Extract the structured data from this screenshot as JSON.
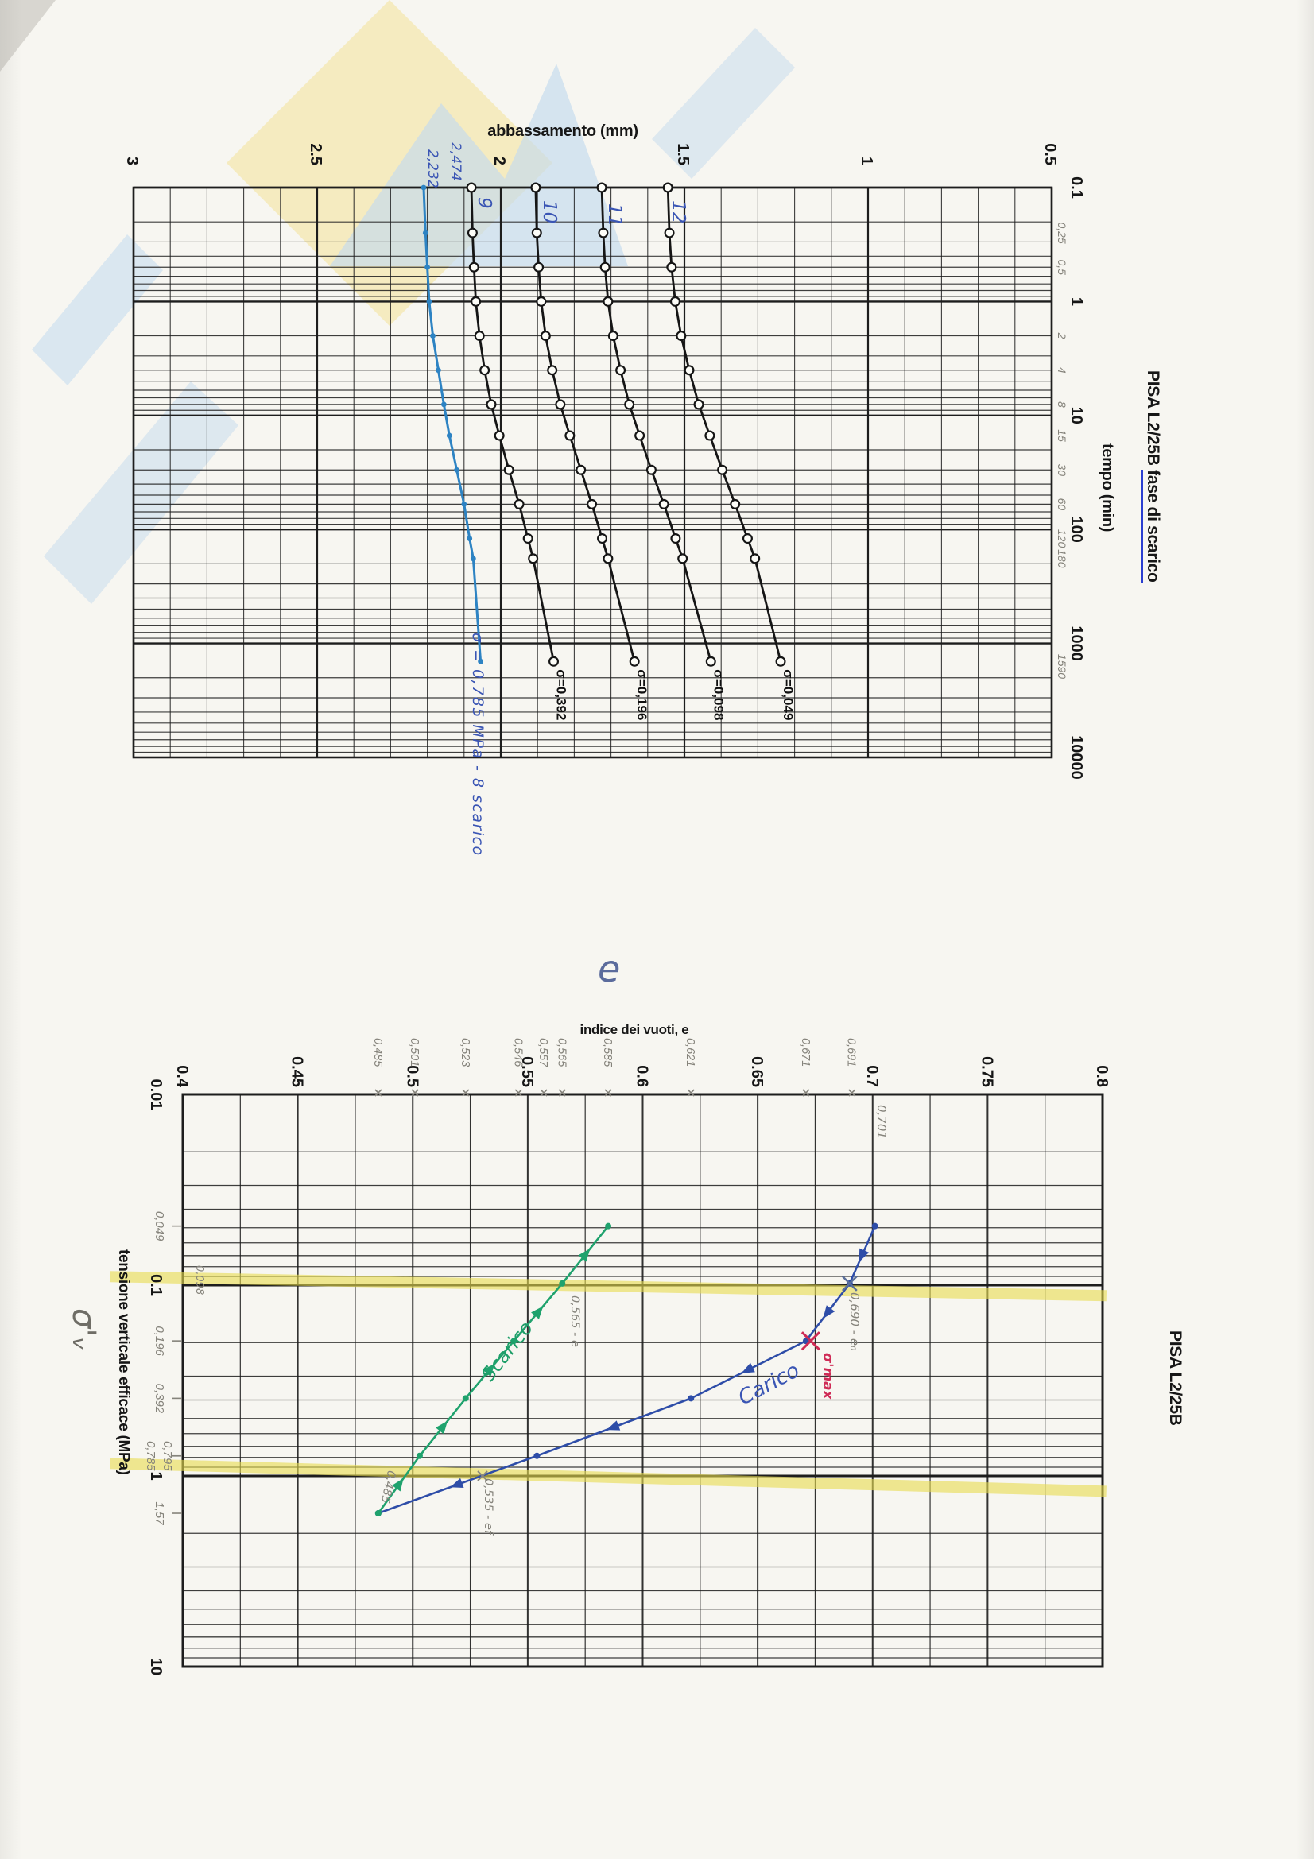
{
  "chart1": {
    "title": "PISA L2/25B ",
    "title_underlined": "fase di scarico",
    "axis_y_label": "abbassamento (mm)",
    "axis_x_label": "tempo (min)",
    "curve_numbers": [
      "9",
      "10",
      "11",
      "12"
    ],
    "hand_value_1": "2,474",
    "hand_value_2": "2,232",
    "hand_note": "σ = 0,785 MPa - 8 scarico"
  },
  "chart2": {
    "title": "PISA L2/25B",
    "axis_x_label": "indice dei vuoti,  e",
    "axis_y_label": "tensione verticale efficace (MPa)",
    "hand_e_symbol": "e",
    "hand_sigma_symbol": "σ'ᵥ",
    "annotations": {
      "v701": "0,701",
      "e0": "0,690 - e₀",
      "sigma_max": "σ'max",
      "carico": "Carico",
      "scarico": "Scarico",
      "v565": "0,565 - e",
      "v535": "0,535 - ef",
      "v485": "0,485",
      "v098": "0,098"
    }
  },
  "colors": {
    "grid": "#1d1d1d",
    "curve_cyan": "#2d83c3",
    "curve_black": "#151515",
    "curve_blue": "#2e4da8",
    "curve_green": "#1fa26d",
    "red_mark": "#cf2b56",
    "pencil": "#85837b",
    "highlighter": "#e8dc4e",
    "pen_blue": "#3a55b4"
  },
  "chart_data": [
    {
      "type": "line",
      "title": "PISA L2/25B fase di scarico",
      "xlabel": "tempo (min)",
      "ylabel": "abbassamento (mm)",
      "x_scale": "log",
      "xlim": [
        0.1,
        10000
      ],
      "ylim": [
        3,
        0.5
      ],
      "grid": "on",
      "orientation": "rotated 90deg clockwise on page",
      "x_ticks": [
        {
          "label": "0.1",
          "t": 0.1
        },
        {
          "label": "1",
          "t": 1
        },
        {
          "label": "10",
          "t": 10
        },
        {
          "label": "100",
          "t": 100
        },
        {
          "label": "1000",
          "t": 1000
        },
        {
          "label": "10000",
          "t": 10000
        }
      ],
      "x_ticks_hand": [
        {
          "label": "0,25",
          "t": 0.25
        },
        {
          "label": "0,5",
          "t": 0.5
        },
        {
          "label": "2",
          "t": 2
        },
        {
          "label": "4",
          "t": 4
        },
        {
          "label": "8",
          "t": 8
        },
        {
          "label": "15",
          "t": 15
        },
        {
          "label": "30",
          "t": 30
        },
        {
          "label": "60",
          "t": 60
        },
        {
          "label": "120",
          "t": 120
        },
        {
          "label": "180",
          "t": 180
        },
        {
          "label": "1590",
          "t": 1590
        }
      ],
      "y_ticks": [
        {
          "label": "3",
          "v": 3
        },
        {
          "label": "2.5",
          "v": 2.5
        },
        {
          "label": "2",
          "v": 2
        },
        {
          "label": "1.5",
          "v": 1.5
        },
        {
          "label": "1",
          "v": 1
        },
        {
          "label": "0.5",
          "v": 0.5
        }
      ],
      "x": [
        0.1,
        0.25,
        0.5,
        1,
        2,
        4,
        8,
        15,
        30,
        60,
        120,
        180,
        1440
      ],
      "series": [
        {
          "name": "8 scarico σ=0,785",
          "pen": "cyan",
          "sigma_label": "",
          "values": [
            2.21,
            2.205,
            2.2,
            2.195,
            2.185,
            2.17,
            2.155,
            2.14,
            2.12,
            2.1,
            2.085,
            2.075,
            2.055
          ]
        },
        {
          "name": "9",
          "pen": "black",
          "sigma_label": "σ=0,392",
          "values": [
            2.08,
            2.077,
            2.073,
            2.068,
            2.058,
            2.044,
            2.026,
            2.004,
            1.978,
            1.95,
            1.926,
            1.912,
            1.856
          ]
        },
        {
          "name": "10",
          "pen": "black",
          "sigma_label": "σ=0,196",
          "values": [
            1.905,
            1.902,
            1.897,
            1.89,
            1.878,
            1.86,
            1.838,
            1.812,
            1.782,
            1.752,
            1.724,
            1.708,
            1.636
          ]
        },
        {
          "name": "11",
          "pen": "black",
          "sigma_label": "σ=0,098",
          "values": [
            1.725,
            1.721,
            1.716,
            1.708,
            1.694,
            1.674,
            1.65,
            1.622,
            1.59,
            1.556,
            1.524,
            1.505,
            1.428
          ]
        },
        {
          "name": "12",
          "pen": "black",
          "sigma_label": "σ=0,049",
          "values": [
            1.545,
            1.541,
            1.535,
            1.525,
            1.509,
            1.487,
            1.461,
            1.431,
            1.397,
            1.362,
            1.328,
            1.308,
            1.238
          ]
        }
      ]
    },
    {
      "type": "scatter",
      "title": "PISA L2/25B",
      "xlabel": "indice dei vuoti, e",
      "ylabel": "tensione verticale efficace (MPa)",
      "y_scale": "log",
      "xlim": [
        0.4,
        0.8
      ],
      "ylim": [
        0.01,
        10
      ],
      "grid": "on",
      "highlighted_stress_lines": [
        0.1,
        1.0
      ],
      "e_ticks": [
        {
          "label": "0.4",
          "v": 0.4
        },
        {
          "label": "0.45",
          "v": 0.45
        },
        {
          "label": "0.5",
          "v": 0.5
        },
        {
          "label": "0.55",
          "v": 0.55
        },
        {
          "label": "0.6",
          "v": 0.6
        },
        {
          "label": "0.65",
          "v": 0.65
        },
        {
          "label": "0.7",
          "v": 0.7
        },
        {
          "label": "0.75",
          "v": 0.75
        },
        {
          "label": "0.8",
          "v": 0.8
        }
      ],
      "e_ticks_hand": [
        {
          "label": "0,485",
          "v": 0.485
        },
        {
          "label": "0,501",
          "v": 0.501
        },
        {
          "label": "0,523",
          "v": 0.523
        },
        {
          "label": "0,546",
          "v": 0.546
        },
        {
          "label": "0,557",
          "v": 0.557
        },
        {
          "label": "0,565",
          "v": 0.565
        },
        {
          "label": "0,585",
          "v": 0.585
        },
        {
          "label": "0,621",
          "v": 0.621
        },
        {
          "label": "0,671",
          "v": 0.671
        },
        {
          "label": "0,691",
          "v": 0.691
        }
      ],
      "s_ticks": [
        {
          "label": "0.01",
          "v": 0.01
        },
        {
          "label": "0.1",
          "v": 0.1
        },
        {
          "label": "1",
          "v": 1
        },
        {
          "label": "10",
          "v": 10
        }
      ],
      "s_ticks_hand": [
        {
          "label": "0,049",
          "v": 0.049,
          "dx": 0
        },
        {
          "label": "0,196",
          "v": 0.196,
          "dx": 0
        },
        {
          "label": "0,392",
          "v": 0.392,
          "dx": 0
        },
        {
          "label": "0,785",
          "v": 0.785,
          "dx": -11
        },
        {
          "label": "0,795",
          "v": 0.785,
          "dx": 10
        },
        {
          "label": "1,57",
          "v": 1.57,
          "dx": 0
        }
      ],
      "series": [
        {
          "name": "carico",
          "color": "blue",
          "points": [
            [
              0.049,
              0.701
            ],
            [
              0.098,
              0.69
            ],
            [
              0.196,
              0.671
            ],
            [
              0.392,
              0.621
            ],
            [
              0.785,
              0.554
            ],
            [
              1.57,
              0.485
            ]
          ]
        },
        {
          "name": "scarico",
          "color": "green",
          "points": [
            [
              1.57,
              0.485
            ],
            [
              0.785,
              0.503
            ],
            [
              0.392,
              0.523
            ],
            [
              0.196,
              0.544
            ],
            [
              0.098,
              0.565
            ],
            [
              0.049,
              0.585
            ]
          ]
        }
      ],
      "special_points": {
        "e0_in_situ": {
          "sigma": 0.098,
          "e": 0.69
        },
        "sigma_max_mark": {
          "sigma": 0.196,
          "e": 0.671
        }
      }
    }
  ]
}
